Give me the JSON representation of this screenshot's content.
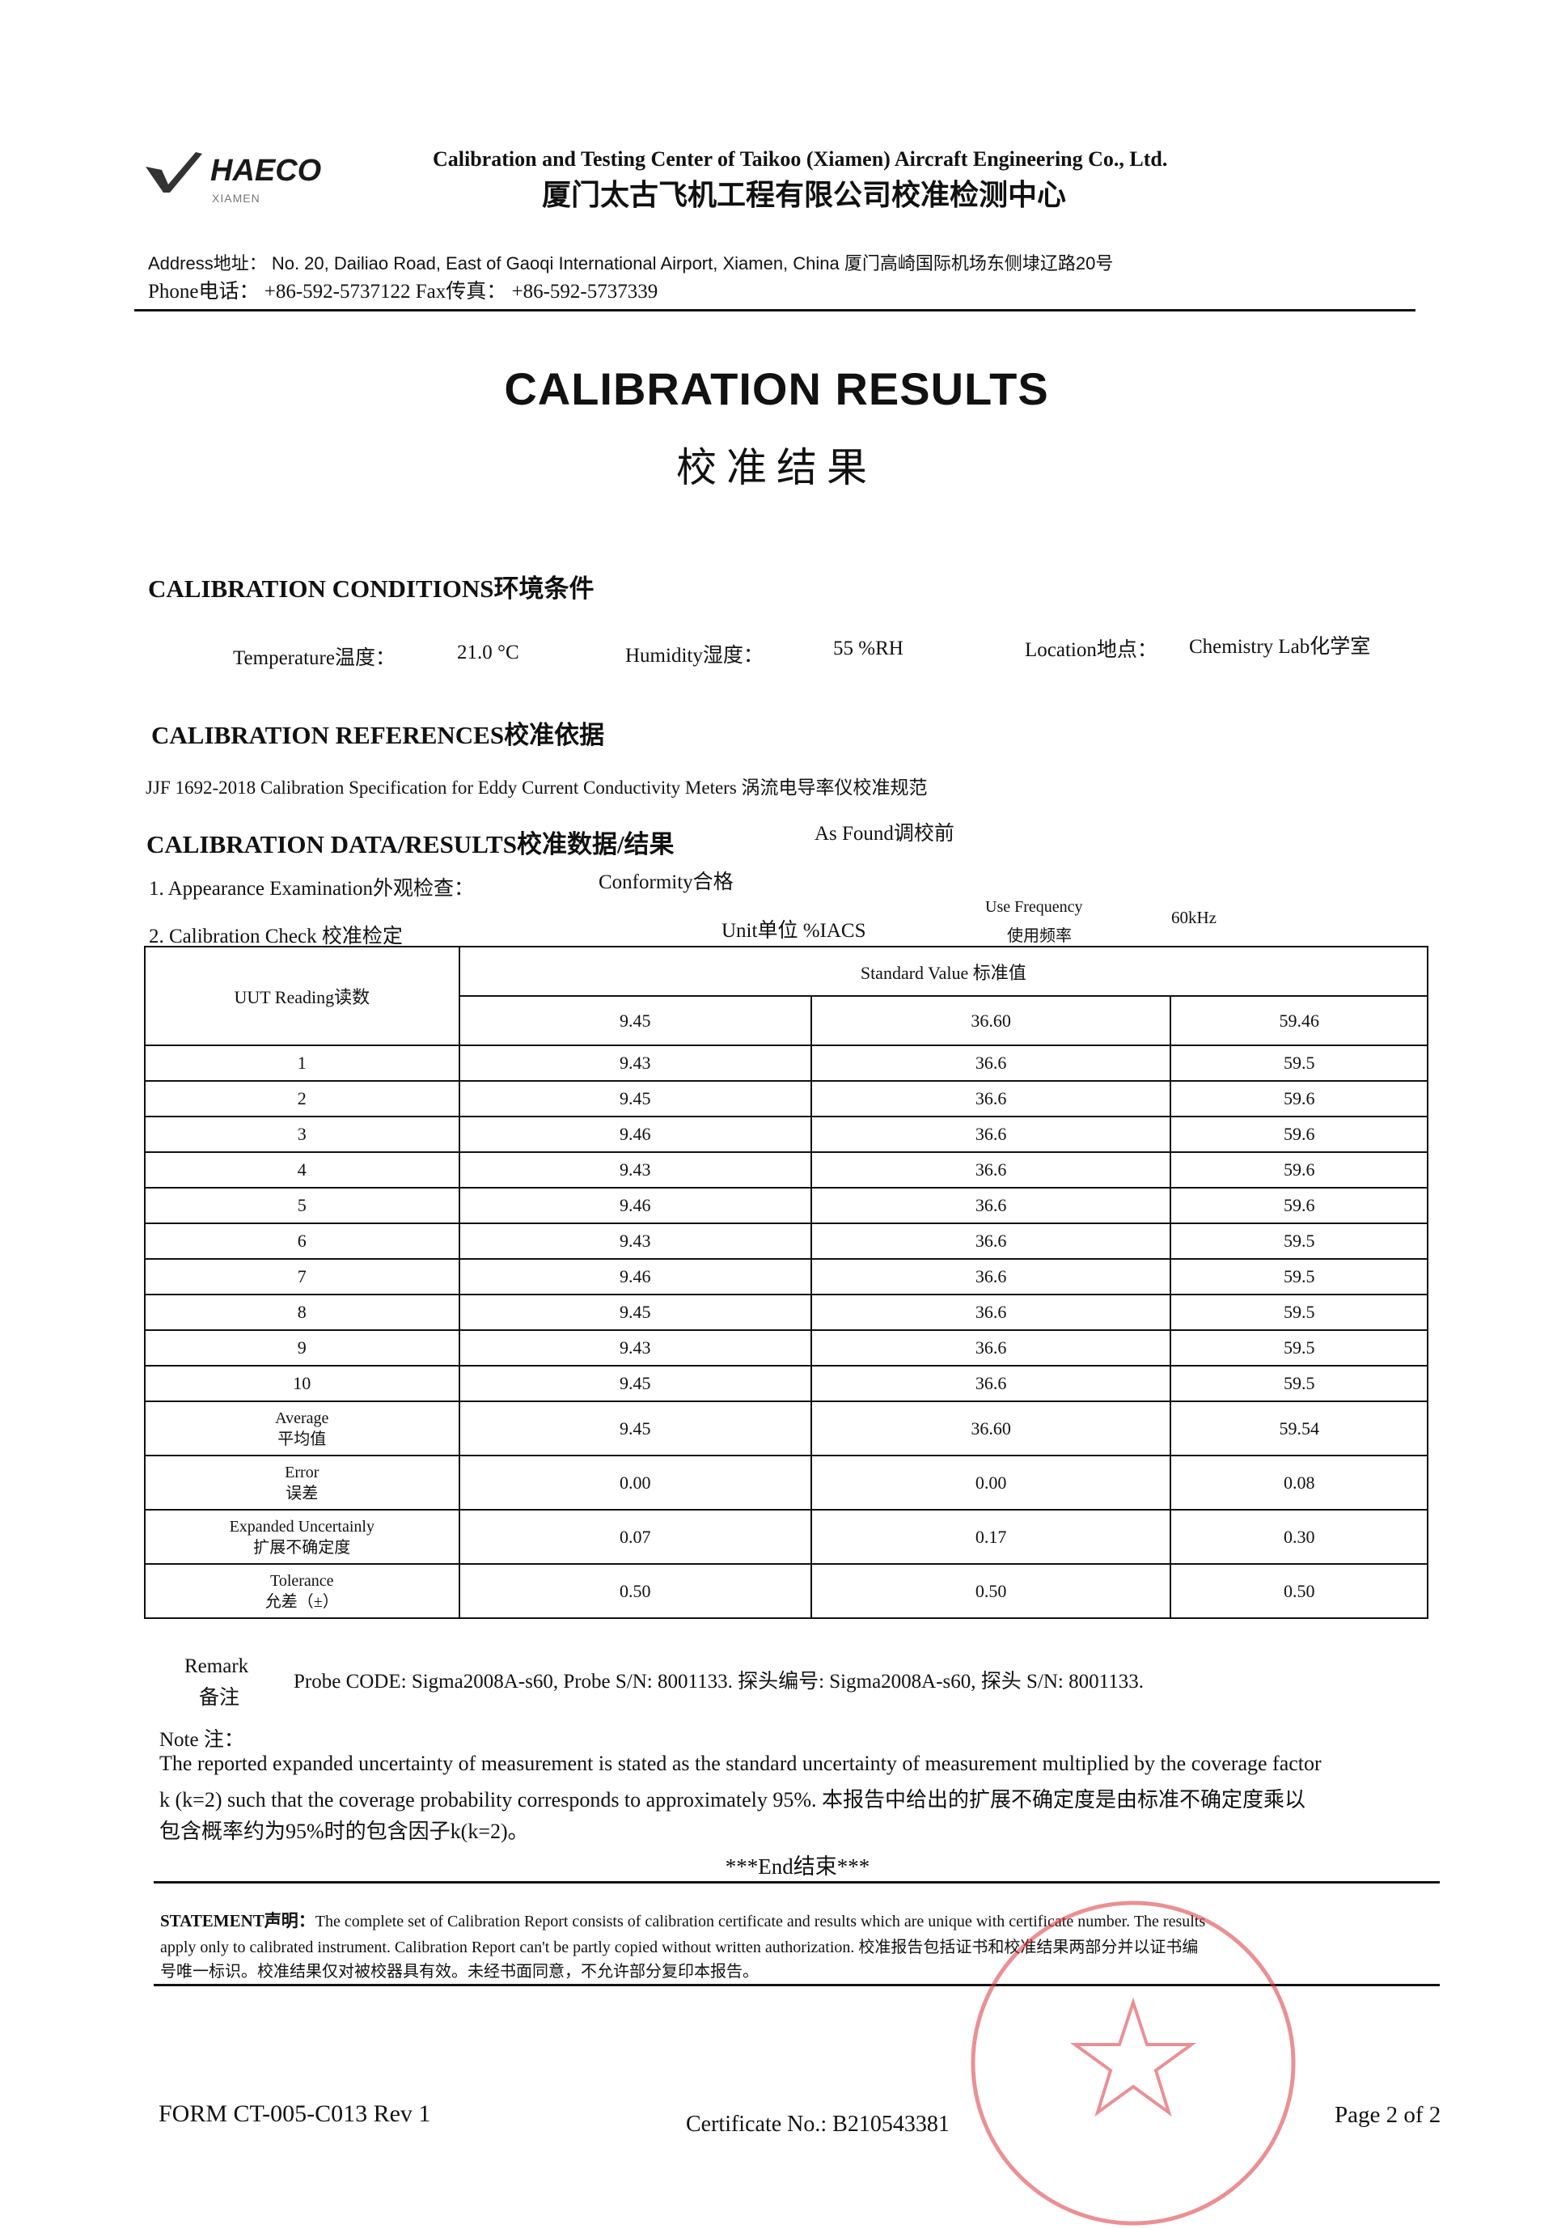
{
  "header": {
    "logo_text": "HAECO",
    "logo_sub": "XIAMEN",
    "org_en": "Calibration and Testing Center of Taikoo (Xiamen) Aircraft Engineering Co., Ltd.",
    "org_cn": "厦门太古飞机工程有限公司校准检测中心",
    "address": "Address地址： No. 20, Dailiao Road, East of Gaoqi International Airport, Xiamen, China 厦门高崎国际机场东侧埭辽路20号",
    "phone": "Phone电话： +86-592-5737122   Fax传真： +86-592-5737339"
  },
  "title": "CALIBRATION RESULTS",
  "title_cn": "校准结果",
  "conditions": {
    "heading": "CALIBRATION CONDITIONS环境条件",
    "temperature_label": "Temperature温度：",
    "temperature": "21.0 °C",
    "humidity_label": "Humidity湿度：",
    "humidity": "55 %RH",
    "location_label": "Location地点：",
    "location": "Chemistry Lab化学室"
  },
  "references": {
    "heading": "CALIBRATION REFERENCES校准依据",
    "text": "JJF 1692-2018 Calibration Specification for Eddy Current Conductivity Meters 涡流电导率仪校准规范"
  },
  "data_results": {
    "heading": "CALIBRATION DATA/RESULTS校准数据/结果",
    "as_found": "As Found调校前",
    "appearance_label": "1. Appearance Examination外观检查：",
    "appearance_value": "Conformity合格",
    "check_label": "2. Calibration Check 校准检定",
    "unit": "Unit单位 %IACS",
    "freq_label_en": "Use Frequency",
    "freq_label_cn": "使用频率",
    "freq_value": "60kHz"
  },
  "table": {
    "uut_header": "UUT Reading读数",
    "standard_header": "Standard Value 标准值",
    "standards": [
      "9.45",
      "36.60",
      "59.46"
    ],
    "rows": [
      {
        "label": "1",
        "values": [
          "9.43",
          "36.6",
          "59.5"
        ]
      },
      {
        "label": "2",
        "values": [
          "9.45",
          "36.6",
          "59.6"
        ]
      },
      {
        "label": "3",
        "values": [
          "9.46",
          "36.6",
          "59.6"
        ]
      },
      {
        "label": "4",
        "values": [
          "9.43",
          "36.6",
          "59.6"
        ]
      },
      {
        "label": "5",
        "values": [
          "9.46",
          "36.6",
          "59.6"
        ]
      },
      {
        "label": "6",
        "values": [
          "9.43",
          "36.6",
          "59.5"
        ]
      },
      {
        "label": "7",
        "values": [
          "9.46",
          "36.6",
          "59.5"
        ]
      },
      {
        "label": "8",
        "values": [
          "9.45",
          "36.6",
          "59.5"
        ]
      },
      {
        "label": "9",
        "values": [
          "9.43",
          "36.6",
          "59.5"
        ]
      },
      {
        "label": "10",
        "values": [
          "9.45",
          "36.6",
          "59.5"
        ]
      }
    ],
    "summary": [
      {
        "label": "Average",
        "label_cn": "平均值",
        "values": [
          "9.45",
          "36.60",
          "59.54"
        ]
      },
      {
        "label": "Error",
        "label_cn": "误差",
        "values": [
          "0.00",
          "0.00",
          "0.08"
        ]
      },
      {
        "label": "Expanded Uncertainly",
        "label_cn": "扩展不确定度",
        "values": [
          "0.07",
          "0.17",
          "0.30"
        ]
      },
      {
        "label": "Tolerance",
        "label_cn": "允差（±）",
        "values": [
          "0.50",
          "0.50",
          "0.50"
        ]
      }
    ]
  },
  "remark": {
    "label": "Remark",
    "label_cn": "备注",
    "text": "Probe CODE: Sigma2008A-s60, Probe S/N: 8001133. 探头编号: Sigma2008A-s60, 探头 S/N: 8001133."
  },
  "note": {
    "label": "Note 注：",
    "lines": [
      "The reported expanded uncertainty of measurement is stated as the standard uncertainty of measurement multiplied by the coverage factor",
      "k (k=2) such that the coverage probability corresponds to approximately 95%. 本报告中给出的扩展不确定度是由标准不确定度乘以",
      "包含概率约为95%时的包含因子k(k=2)。"
    ]
  },
  "end": "***End结束***",
  "statement": {
    "label": "STATEMENT声明：",
    "line1": "The complete set of Calibration Report consists of calibration certificate and results which are unique with certificate number. The results",
    "line2": "apply only to calibrated instrument. Calibration Report can't be partly copied without written authorization. 校准报告包括证书和校准结果两部分并以证书编",
    "line3": "号唯一标识。校准结果仅对被校器具有效。未经书面同意，不允许部分复印本报告。"
  },
  "footer": {
    "form": "FORM CT-005-C013 Rev 1",
    "certificate": "Certificate No.: B210543381",
    "page": "Page 2 of 2"
  },
  "colors": {
    "stamp": "#d9363e",
    "text": "#111111"
  }
}
